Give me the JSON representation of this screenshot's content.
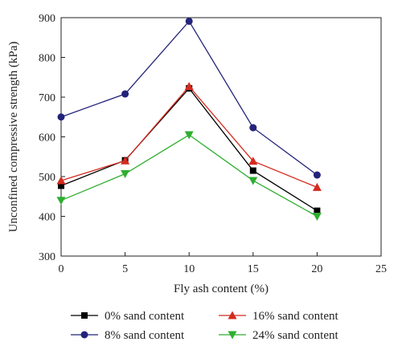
{
  "chart_data": {
    "type": "line",
    "xlabel": "Fly ash content (%)",
    "ylabel": "Unconfined compressive strength (kPa)",
    "xlim": [
      0,
      25
    ],
    "ylim": [
      300,
      900
    ],
    "xticks": [
      0,
      5,
      10,
      15,
      20,
      25
    ],
    "yticks": [
      300,
      400,
      500,
      600,
      700,
      800,
      900
    ],
    "grid": false,
    "legend_position": "bottom",
    "x": [
      0,
      5,
      10,
      15,
      20
    ],
    "series": [
      {
        "name": "0% sand content",
        "values": [
          477,
          541,
          722,
          515,
          414
        ],
        "color": "#000000",
        "marker": "square"
      },
      {
        "name": "8% sand content",
        "values": [
          650,
          708,
          891,
          623,
          504
        ],
        "color": "#23237a",
        "marker": "circle"
      },
      {
        "name": "16% sand content",
        "values": [
          490,
          540,
          727,
          539,
          473
        ],
        "color": "#d42a1e",
        "marker": "triangle-up"
      },
      {
        "name": "24% sand content",
        "values": [
          440,
          507,
          605,
          490,
          400
        ],
        "color": "#2fae2f",
        "marker": "triangle-down"
      }
    ]
  }
}
